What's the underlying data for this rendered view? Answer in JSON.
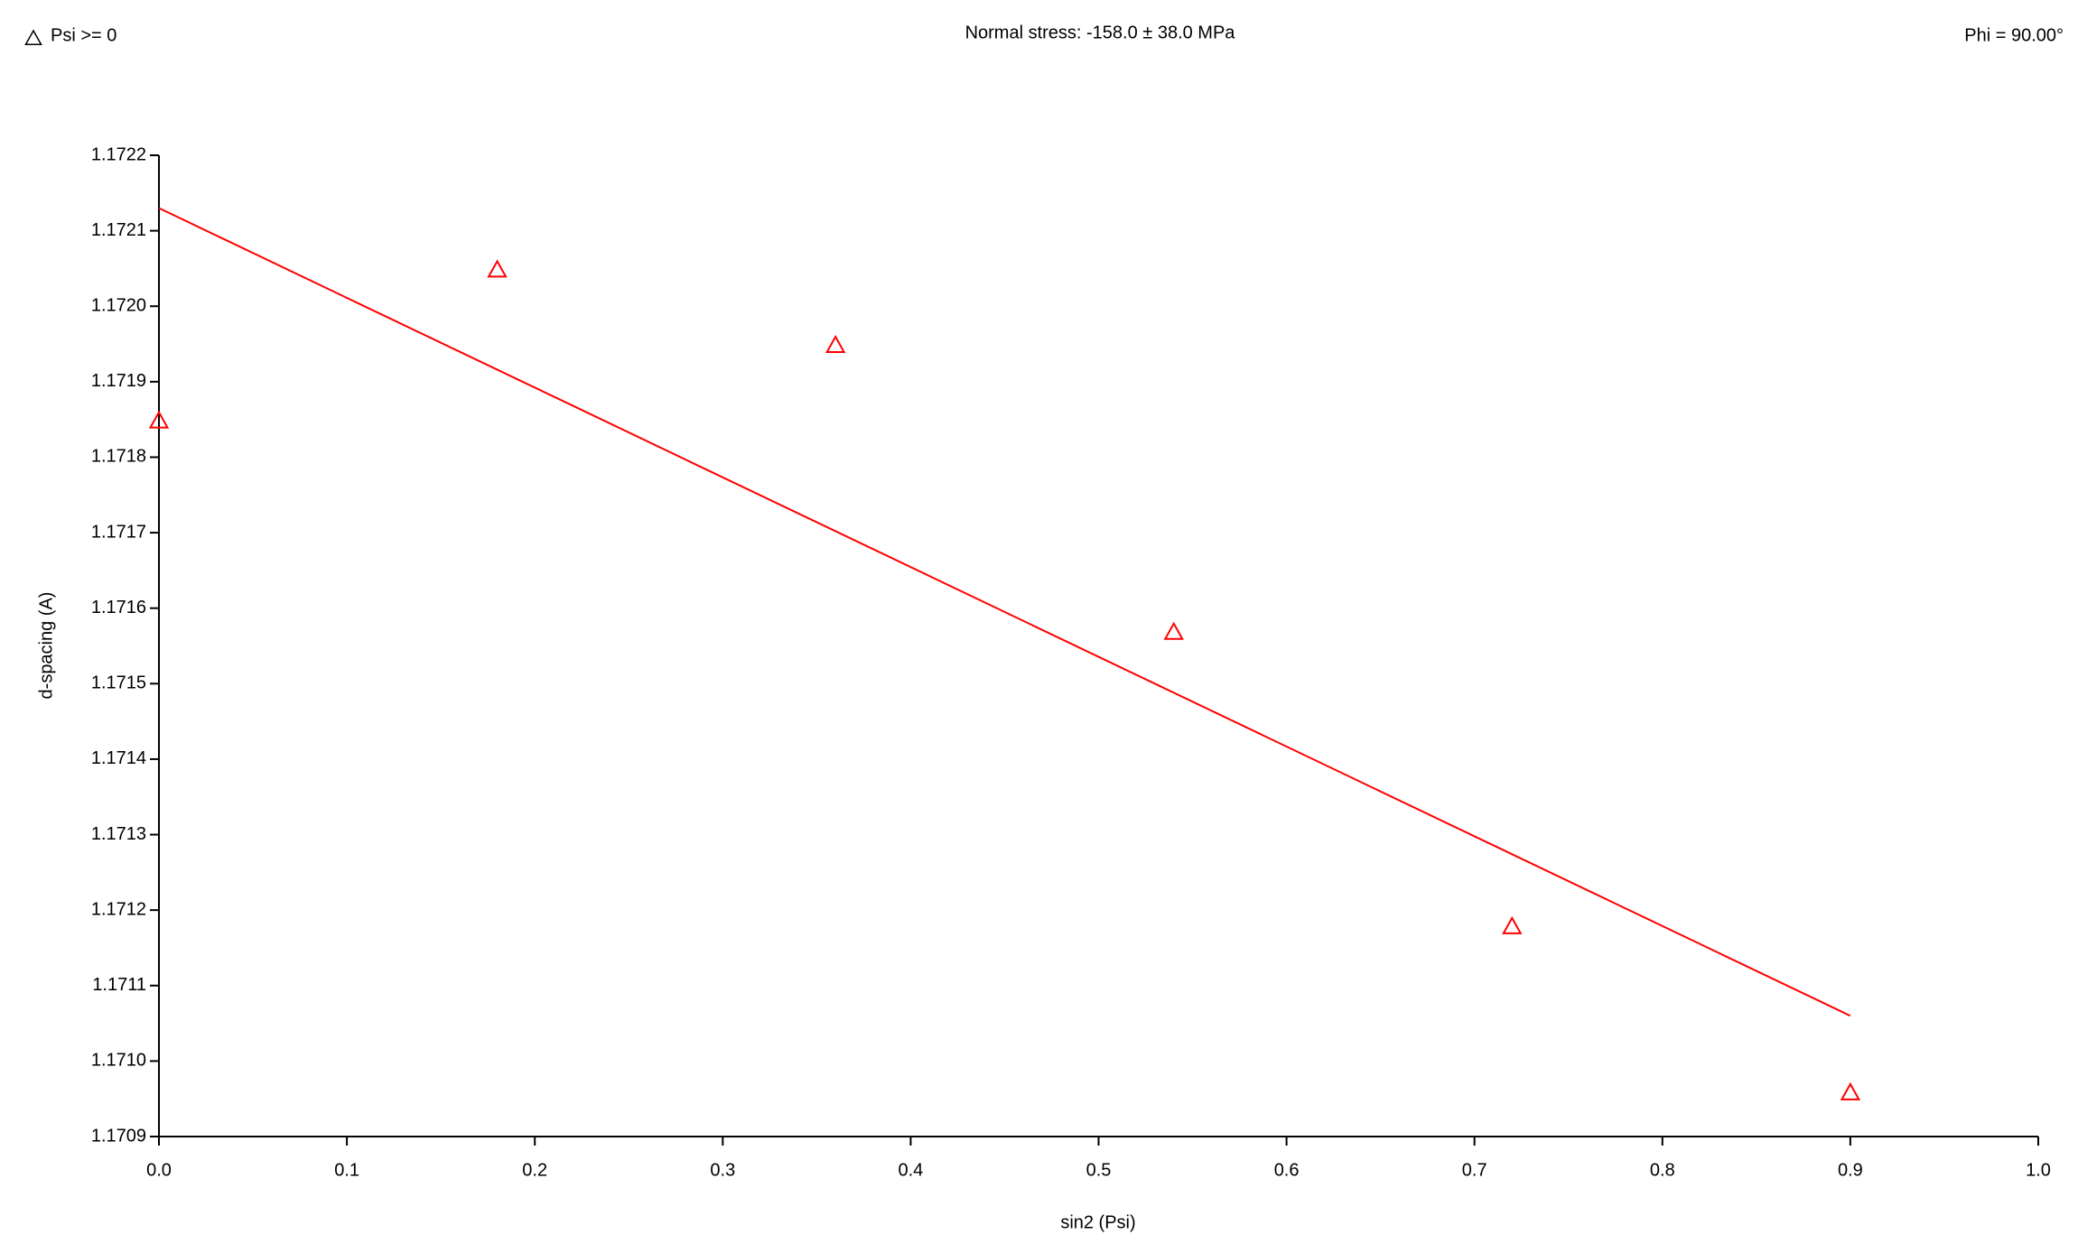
{
  "chart_data": {
    "type": "scatter",
    "title": "Normal stress: -158.0 ± 38.0 MPa",
    "annotation": "Phi = 90.00°",
    "x_label": "sin2 (Psi)",
    "y_label": "d-spacing (A)",
    "xlim": [
      0,
      1
    ],
    "ylim": [
      1.1709,
      1.1722
    ],
    "xticks": [
      {
        "value": 0,
        "label": "0.0"
      },
      0.1,
      0.2,
      0.3,
      0.4,
      0.5,
      0.6,
      0.7,
      0.8,
      0.9,
      {
        "value": 1,
        "label": "1.0"
      }
    ],
    "yticks": [
      1.1709,
      {
        "value": 1.171,
        "label": "1.1710"
      },
      1.1711,
      1.1712,
      1.1713,
      1.1714,
      1.1715,
      1.1716,
      1.1717,
      1.1718,
      1.1719,
      {
        "value": 1.172,
        "label": "1.1720"
      },
      1.1721,
      1.1722
    ],
    "series": [
      {
        "name": "Psi >= 0",
        "type": "scatter",
        "color": "#ff0000",
        "marker": "triangle",
        "x": [
          0,
          0.18,
          0.36,
          0.54,
          0.72,
          0.9
        ],
        "values": [
          1.17185,
          1.17205,
          1.17195,
          1.17157,
          1.17118,
          1.17096
        ]
      },
      {
        "type": "line",
        "color": "#ff0000",
        "x": [
          0,
          0.9
        ],
        "values": [
          1.17213,
          1.17106
        ]
      }
    ]
  }
}
